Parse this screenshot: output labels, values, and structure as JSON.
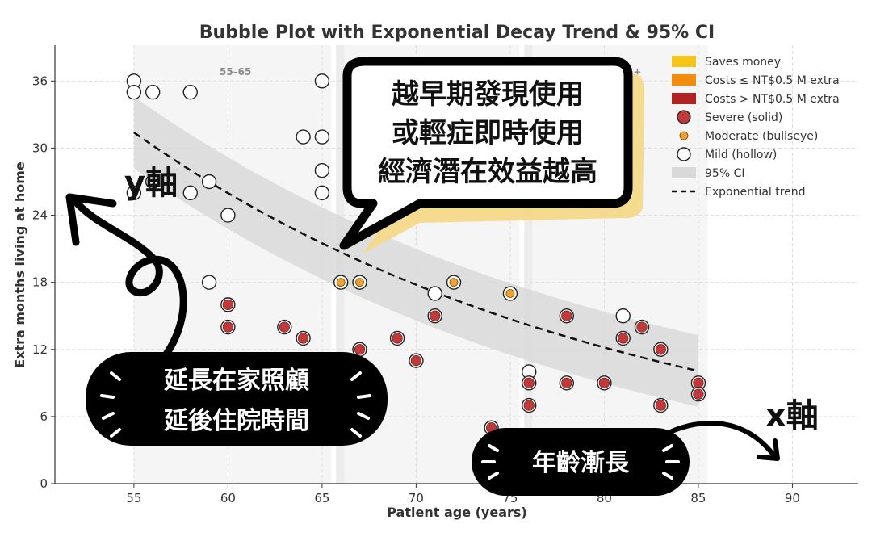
{
  "chart_data": {
    "type": "scatter",
    "title": "Bubble Plot with Exponential Decay Trend & 95% CI",
    "xlabel": "Patient age (years)",
    "ylabel": "Extra months living at home",
    "xlim": [
      50.8,
      93.5
    ],
    "ylim": [
      0,
      39.2
    ],
    "xticks": [
      55,
      60,
      65,
      70,
      75,
      80,
      85,
      90
    ],
    "yticks": [
      0,
      6,
      12,
      18,
      24,
      30,
      36
    ],
    "grid": true,
    "legend_position": "top-right",
    "age_bands": [
      {
        "label": "55–65",
        "x_start": 55,
        "x_end": 65.5
      },
      {
        "label": "",
        "x_start": 66,
        "x_end": 75.5
      },
      {
        "label": "76+",
        "x_start": 76,
        "x_end": 85.5
      }
    ],
    "legend": [
      {
        "label": "Saves money",
        "kind": "patch",
        "color": "#f5c518"
      },
      {
        "label": "Costs ≤ NT$0.5 M extra",
        "kind": "patch",
        "color": "#f28c0f"
      },
      {
        "label": "Costs > NT$0.5 M extra",
        "kind": "patch",
        "color": "#b22222"
      },
      {
        "label": "Severe (solid)",
        "kind": "solid",
        "color": "#c0393b"
      },
      {
        "label": "Moderate (bullseye)",
        "kind": "bullseye",
        "color": "#f0a030"
      },
      {
        "label": "Mild (hollow)",
        "kind": "hollow",
        "color": "#222222"
      },
      {
        "label": "95% CI",
        "kind": "band",
        "color": "#d9d9d9"
      },
      {
        "label": "Exponential trend",
        "kind": "dashed",
        "color": "#111111"
      }
    ],
    "trend": {
      "a": 31.4,
      "k": 0.0379,
      "x0": 55,
      "x_end": 85,
      "ci_half_width": 3.2
    },
    "series": [
      {
        "name": "Mild (hollow)",
        "style": "hollow",
        "points": [
          [
            55,
            36
          ],
          [
            55,
            35
          ],
          [
            56,
            35
          ],
          [
            58,
            35
          ],
          [
            55,
            26
          ],
          [
            56,
            27
          ],
          [
            58,
            26
          ],
          [
            59,
            27
          ],
          [
            60,
            24
          ],
          [
            59,
            18
          ],
          [
            64,
            31
          ],
          [
            65,
            31
          ],
          [
            65,
            36
          ],
          [
            65,
            28
          ],
          [
            65,
            26
          ],
          [
            71,
            17
          ],
          [
            76,
            10
          ],
          [
            81,
            15
          ]
        ]
      },
      {
        "name": "Moderate (bullseye)",
        "style": "bullseye",
        "points": [
          [
            66,
            18
          ],
          [
            67,
            18
          ],
          [
            72,
            18
          ],
          [
            75,
            17
          ]
        ]
      },
      {
        "name": "Severe (solid)",
        "style": "solid",
        "points": [
          [
            60,
            16
          ],
          [
            60,
            14
          ],
          [
            63,
            14
          ],
          [
            64,
            13
          ],
          [
            67,
            12
          ],
          [
            69,
            13
          ],
          [
            70,
            11
          ],
          [
            71,
            15
          ],
          [
            78,
            15
          ],
          [
            81,
            13
          ],
          [
            82,
            14
          ],
          [
            83,
            12
          ],
          [
            74,
            5
          ],
          [
            76,
            9
          ],
          [
            76,
            7
          ],
          [
            78,
            9
          ],
          [
            80,
            9
          ],
          [
            83,
            7
          ],
          [
            85,
            9
          ],
          [
            85,
            8
          ]
        ]
      }
    ]
  },
  "annotations": {
    "speech_bubble_lines": [
      "越早期發現使用",
      "或輕症即時使用",
      "經濟潛在效益越高"
    ],
    "left_note_lines": [
      "延長在家照顧",
      "延後住院時間"
    ],
    "right_note": "年齡漸長",
    "y_axis_tag": "y軸",
    "x_axis_tag": "x軸"
  },
  "colors": {
    "severe_fill": "#c0393b",
    "severe_ring": "#222222",
    "moderate_fill": "#f0a030",
    "ci_band": "#d9d9d9",
    "highlighter": "#f3d98a",
    "note_bg": "#000000",
    "panel_bg": "#f5f5f5"
  }
}
